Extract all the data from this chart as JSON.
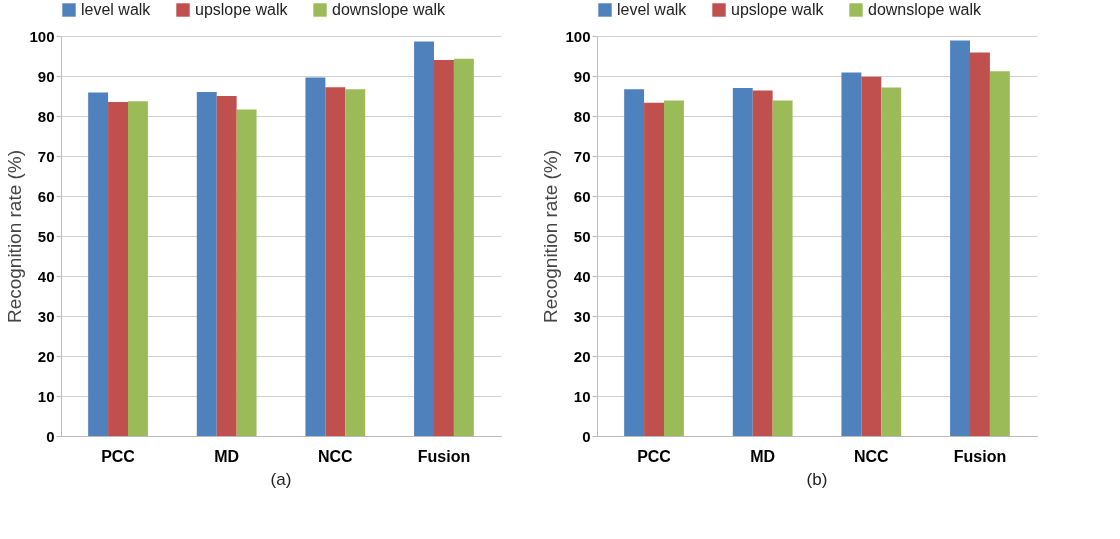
{
  "chart_data": [
    {
      "type": "bar",
      "ylabel": "Recognition rate (%)",
      "categories": [
        "PCC",
        "MD",
        "NCC",
        "Fusion"
      ],
      "ylim": [
        0,
        100
      ],
      "yticks": [
        0,
        10,
        20,
        30,
        40,
        50,
        60,
        70,
        80,
        90,
        100
      ],
      "grid": "y",
      "legend": "top",
      "annotations": [
        "(a)"
      ],
      "series": [
        {
          "name": "level walk",
          "color": "#4f81bd",
          "values": [
            85.9,
            86,
            89.6,
            98.6
          ]
        },
        {
          "name": "upslope walk",
          "color": "#c0504d",
          "values": [
            83.5,
            85,
            87.2,
            94
          ]
        },
        {
          "name": "downslope walk",
          "color": "#9bbb59",
          "values": [
            83.7,
            81.6,
            86.7,
            94.3
          ]
        }
      ]
    },
    {
      "type": "bar",
      "ylabel": "Recognition rate (%)",
      "categories": [
        "PCC",
        "MD",
        "NCC",
        "Fusion"
      ],
      "ylim": [
        0,
        100
      ],
      "yticks": [
        0,
        10,
        20,
        30,
        40,
        50,
        60,
        70,
        80,
        90,
        100
      ],
      "grid": "y",
      "legend": "top",
      "annotations": [
        "(b)"
      ],
      "series": [
        {
          "name": "level walk",
          "color": "#4f81bd",
          "values": [
            86.7,
            87,
            90.9,
            98.9
          ]
        },
        {
          "name": "upslope walk",
          "color": "#c0504d",
          "values": [
            83.3,
            86.4,
            89.8,
            95.9
          ]
        },
        {
          "name": "downslope walk",
          "color": "#9bbb59",
          "values": [
            83.9,
            83.9,
            87.1,
            91.2
          ]
        }
      ]
    }
  ]
}
